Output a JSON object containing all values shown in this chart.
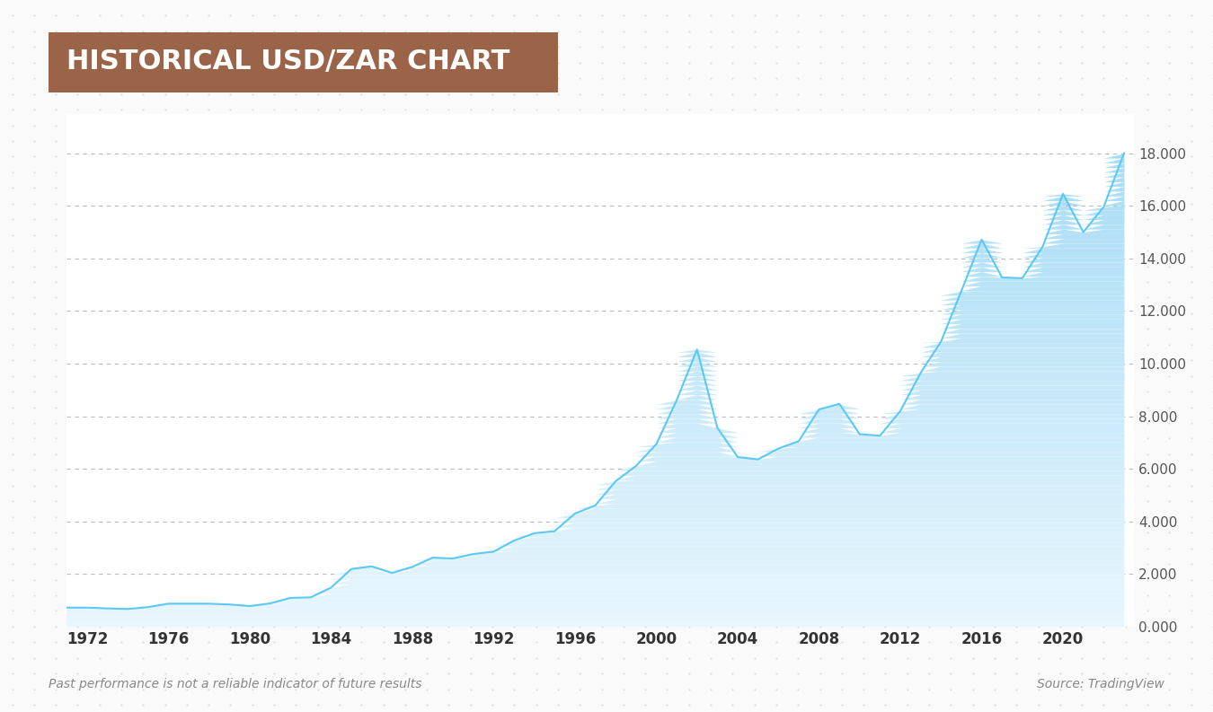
{
  "title": "HISTORICAL USD/ZAR CHART",
  "title_bg_color": "#9B6449",
  "title_text_color": "#FFFFFF",
  "background_color": "#FAFAFA",
  "dot_pattern_color": "#DDDDDD",
  "chart_bg_color": "#FFFFFF",
  "line_color": "#5BC8F5",
  "fill_color_top": "#A8DCF5",
  "fill_color_bottom": "#E8F6FD",
  "grid_color": "#CCCCCC",
  "ytick_labels": [
    "0.000",
    "2.000",
    "4.000",
    "6.000",
    "8.000",
    "10.000",
    "12.000",
    "14.000",
    "16.000",
    "18.000"
  ],
  "ytick_values": [
    0,
    2,
    4,
    6,
    8,
    10,
    12,
    14,
    16,
    18
  ],
  "xtick_labels": [
    "1972",
    "1976",
    "1980",
    "1984",
    "1988",
    "1992",
    "1996",
    "2000",
    "2004",
    "2008",
    "2012",
    "2016",
    "2020"
  ],
  "xtick_values": [
    1972,
    1976,
    1980,
    1984,
    1988,
    1992,
    1996,
    2000,
    2004,
    2008,
    2012,
    2016,
    2020
  ],
  "ylabel_left": "",
  "footer_left": "Past performance is not a reliable indicator of future results",
  "footer_right": "Source: TradingView",
  "ylim": [
    0,
    19.5
  ],
  "xlim": [
    1971,
    2023.5
  ],
  "years": [
    1971,
    1972,
    1973,
    1974,
    1975,
    1976,
    1977,
    1978,
    1979,
    1980,
    1981,
    1982,
    1983,
    1984,
    1985,
    1986,
    1987,
    1988,
    1989,
    1990,
    1991,
    1992,
    1993,
    1994,
    1995,
    1996,
    1997,
    1998,
    1999,
    2000,
    2001,
    2002,
    2003,
    2004,
    2005,
    2006,
    2007,
    2008,
    2009,
    2010,
    2011,
    2012,
    2013,
    2014,
    2015,
    2016,
    2017,
    2018,
    2019,
    2020,
    2021,
    2022,
    2023
  ],
  "values": [
    0.72,
    0.72,
    0.69,
    0.67,
    0.74,
    0.87,
    0.87,
    0.87,
    0.84,
    0.78,
    0.88,
    1.09,
    1.11,
    1.48,
    2.19,
    2.29,
    2.04,
    2.27,
    2.62,
    2.59,
    2.76,
    2.85,
    3.27,
    3.55,
    3.63,
    4.3,
    4.61,
    5.53,
    6.11,
    6.94,
    8.61,
    10.54,
    7.56,
    6.45,
    6.36,
    6.77,
    7.05,
    8.26,
    8.47,
    7.32,
    7.26,
    8.2,
    9.65,
    10.84,
    12.76,
    14.72,
    13.28,
    13.25,
    14.45,
    16.46,
    15.0,
    15.96,
    18.0
  ]
}
